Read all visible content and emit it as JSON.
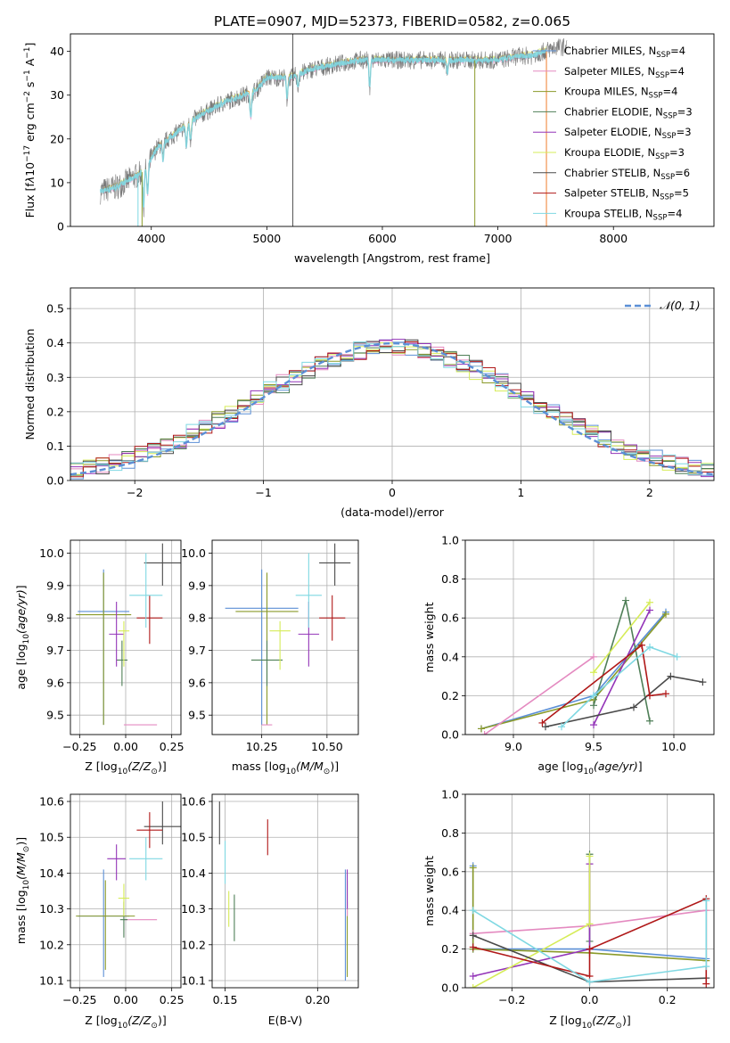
{
  "figure": {
    "title": "PLATE=0907, MJD=52373, FIBERID=0582, z=0.065"
  },
  "colors": {
    "Chabrier MILES": "#5b8fd6",
    "Salpeter MILES": "#e48ac0",
    "Kroupa MILES": "#8a9a2a",
    "Chabrier ELODIE": "#4f7f57",
    "Salpeter ELODIE": "#9334b8",
    "Kroupa ELODIE": "#d6ec58",
    "Chabrier STELIB": "#4a4a4a",
    "Salpeter STELIB": "#b01818",
    "Kroupa STELIB": "#7fd8e2",
    "orange": "#f07f2e",
    "gaussian": "#5b8fd6",
    "grid": "#b0b0b0"
  },
  "chart_data": [
    {
      "id": "spectrum",
      "type": "line",
      "title": "PLATE=0907, MJD=52373, FIBERID=0582, z=0.065",
      "xlabel": "wavelength [Angstrom, rest frame]",
      "ylabel_parts": [
        "Flux [f",
        "λ",
        "10",
        "−17",
        " erg cm",
        "−2",
        " s",
        "−1",
        " A",
        "−1",
        "]"
      ],
      "xlim": [
        3300,
        8870
      ],
      "ylim": [
        0,
        44
      ],
      "xticks": [
        4000,
        5000,
        6000,
        7000,
        8000
      ],
      "yticks": [
        0,
        10,
        20,
        30,
        40
      ],
      "grid": false,
      "legend_position": "top-right",
      "legend": [
        {
          "name": "Chabrier MILES",
          "n": "4"
        },
        {
          "name": "Salpeter MILES",
          "n": "4"
        },
        {
          "name": "Kroupa MILES",
          "n": "4"
        },
        {
          "name": "Chabrier ELODIE",
          "n": "3"
        },
        {
          "name": "Salpeter ELODIE",
          "n": "3"
        },
        {
          "name": "Kroupa ELODIE",
          "n": "3"
        },
        {
          "name": "Chabrier STELIB",
          "n": "6"
        },
        {
          "name": "Salpeter STELIB",
          "n": "5"
        },
        {
          "name": "Kroupa STELIB",
          "n": "4"
        }
      ],
      "continuum_x": [
        3560,
        3700,
        3900,
        3950,
        4050,
        4200,
        4400,
        4600,
        4800,
        4900,
        5000,
        5200,
        5400,
        5600,
        5800,
        6000,
        6200,
        6400,
        6600,
        6800,
        7000,
        7200,
        7300,
        7400,
        7500
      ],
      "continuum_y": [
        8,
        9,
        12,
        13,
        18,
        21,
        25,
        28,
        30,
        31,
        34,
        34,
        36,
        37,
        38,
        38,
        38,
        38,
        38,
        38,
        38,
        39,
        39,
        40,
        41
      ],
      "model_end_wavelength": 7420,
      "data_end_wavelength": 7600
    },
    {
      "id": "residuals",
      "type": "histogram",
      "xlabel": "(data-model)/error",
      "ylabel": "Normed distribution",
      "xlim": [
        -2.5,
        2.5
      ],
      "ylim": [
        0,
        0.56
      ],
      "xticks": [
        -2,
        -1,
        0,
        1,
        2
      ],
      "xtick_labels": [
        "−2",
        "−1",
        "0",
        "1",
        "2"
      ],
      "yticks": [
        0.0,
        0.1,
        0.2,
        0.3,
        0.4,
        0.5
      ],
      "grid": true,
      "legend_position": "top-right",
      "gaussian_label": "𝒩(0, 1)"
    },
    {
      "id": "age-vs-Z",
      "type": "scatter",
      "xlabel": "Z [log10(Z/Z☉)]",
      "ylabel": "age [log10(age/yr)]",
      "xlim": [
        -0.3,
        0.3
      ],
      "ylim": [
        9.44,
        10.04
      ],
      "xticks": [
        -0.25,
        0.0,
        0.25
      ],
      "xtick_labels": [
        "−0.25",
        "0.00",
        "0.25"
      ],
      "yticks": [
        9.5,
        9.6,
        9.7,
        9.8,
        9.9,
        10.0
      ],
      "grid": true,
      "points": [
        {
          "model": "Chabrier MILES",
          "x": -0.12,
          "xerr": 0.14,
          "y": 9.82,
          "yerr": [
            0.35,
            0.13
          ]
        },
        {
          "model": "Kroupa MILES",
          "x": -0.12,
          "xerr": 0.15,
          "y": 9.81,
          "yerr": [
            0.34,
            0.13
          ]
        },
        {
          "model": "Salpeter MILES",
          "x": 0.08,
          "xerr": 0.09,
          "y": 9.47,
          "yerr": [
            0.0,
            0.0
          ]
        },
        {
          "model": "Chabrier ELODIE",
          "x": -0.02,
          "xerr": 0.03,
          "y": 9.67,
          "yerr": [
            0.08,
            0.06
          ]
        },
        {
          "model": "Salpeter ELODIE",
          "x": -0.05,
          "xerr": 0.04,
          "y": 9.75,
          "yerr": [
            0.1,
            0.1
          ]
        },
        {
          "model": "Kroupa ELODIE",
          "x": -0.01,
          "xerr": 0.03,
          "y": 9.76,
          "yerr": [
            0.11,
            0.03
          ]
        },
        {
          "model": "Chabrier STELIB",
          "x": 0.2,
          "xerr": 0.1,
          "y": 9.97,
          "yerr": [
            0.07,
            0.06
          ]
        },
        {
          "model": "Salpeter STELIB",
          "x": 0.13,
          "xerr": 0.07,
          "y": 9.8,
          "yerr": [
            0.08,
            0.07
          ]
        },
        {
          "model": "Kroupa STELIB",
          "x": 0.11,
          "xerr": 0.09,
          "y": 9.87,
          "yerr": [
            0.1,
            0.13
          ]
        }
      ]
    },
    {
      "id": "age-vs-mass",
      "type": "scatter",
      "xlabel": "mass [log10(M/M☉)]",
      "xlim": [
        10.06,
        10.62
      ],
      "ylim": [
        9.44,
        10.04
      ],
      "xticks": [
        10.25,
        10.5
      ],
      "xtick_labels": [
        "10.25",
        "10.50"
      ],
      "yticks": [
        9.5,
        9.6,
        9.7,
        9.8,
        9.9,
        10.0
      ],
      "grid": true,
      "points": [
        {
          "model": "Chabrier MILES",
          "x": 10.25,
          "xerr": 0.14,
          "y": 9.83,
          "yerr": [
            0.36,
            0.12
          ]
        },
        {
          "model": "Kroupa MILES",
          "x": 10.27,
          "xerr": 0.12,
          "y": 9.82,
          "yerr": [
            0.35,
            0.12
          ]
        },
        {
          "model": "Salpeter MILES",
          "x": 10.27,
          "xerr": 0.02,
          "y": 9.47,
          "yerr": [
            0.0,
            0.0
          ]
        },
        {
          "model": "Chabrier ELODIE",
          "x": 10.27,
          "xerr": 0.06,
          "y": 9.67,
          "yerr": [
            0.08,
            0.06
          ]
        },
        {
          "model": "Salpeter ELODIE",
          "x": 10.43,
          "xerr": 0.04,
          "y": 9.75,
          "yerr": [
            0.1,
            0.1
          ]
        },
        {
          "model": "Kroupa ELODIE",
          "x": 10.32,
          "xerr": 0.04,
          "y": 9.76,
          "yerr": [
            0.12,
            0.03
          ]
        },
        {
          "model": "Chabrier STELIB",
          "x": 10.53,
          "xerr": 0.06,
          "y": 9.97,
          "yerr": [
            0.07,
            0.06
          ]
        },
        {
          "model": "Salpeter STELIB",
          "x": 10.52,
          "xerr": 0.05,
          "y": 9.8,
          "yerr": [
            0.07,
            0.07
          ]
        },
        {
          "model": "Kroupa STELIB",
          "x": 10.43,
          "xerr": 0.05,
          "y": 9.87,
          "yerr": [
            0.1,
            0.13
          ]
        }
      ]
    },
    {
      "id": "weight-vs-age",
      "type": "line",
      "xlabel": "age [log10(age/yr)]",
      "ylabel": "mass weight",
      "xlim": [
        8.7,
        10.25
      ],
      "ylim": [
        0,
        1.0
      ],
      "xticks": [
        9.0,
        9.5,
        10.0
      ],
      "xtick_labels": [
        "9.0",
        "9.5",
        "10.0"
      ],
      "yticks": [
        0.0,
        0.2,
        0.4,
        0.6,
        0.8,
        1.0
      ],
      "grid": true,
      "series": [
        {
          "model": "Chabrier MILES",
          "x": [
            8.8,
            9.5,
            9.95
          ],
          "y": [
            0.03,
            0.2,
            0.63
          ]
        },
        {
          "model": "Kroupa MILES",
          "x": [
            8.8,
            9.5,
            9.95
          ],
          "y": [
            0.03,
            0.18,
            0.62
          ]
        },
        {
          "model": "Salpeter MILES",
          "x": [
            8.82,
            9.5
          ],
          "y": [
            0.0,
            0.4
          ]
        },
        {
          "model": "Chabrier ELODIE",
          "x": [
            9.5,
            9.7,
            9.85
          ],
          "y": [
            0.15,
            0.69,
            0.07
          ]
        },
        {
          "model": "Salpeter ELODIE",
          "x": [
            9.5,
            9.85
          ],
          "y": [
            0.05,
            0.64
          ]
        },
        {
          "model": "Kroupa ELODIE",
          "x": [
            9.5,
            9.85
          ],
          "y": [
            0.32,
            0.68
          ]
        },
        {
          "model": "Chabrier STELIB",
          "x": [
            9.2,
            9.75,
            9.98,
            10.18
          ],
          "y": [
            0.04,
            0.14,
            0.3,
            0.27
          ]
        },
        {
          "model": "Salpeter STELIB",
          "x": [
            9.18,
            9.8,
            9.85,
            9.95
          ],
          "y": [
            0.06,
            0.46,
            0.2,
            0.21
          ]
        },
        {
          "model": "Kroupa STELIB",
          "x": [
            9.3,
            9.5,
            9.85,
            10.02
          ],
          "y": [
            0.04,
            0.2,
            0.45,
            0.4
          ]
        }
      ]
    },
    {
      "id": "mass-vs-Z",
      "type": "scatter",
      "xlabel": "Z [log10(Z/Z☉)]",
      "ylabel": "mass [log10(M/M☉)]",
      "xlim": [
        -0.3,
        0.3
      ],
      "ylim": [
        10.08,
        10.62
      ],
      "xticks": [
        -0.25,
        0.0,
        0.25
      ],
      "xtick_labels": [
        "−0.25",
        "0.00",
        "0.25"
      ],
      "yticks": [
        10.1,
        10.2,
        10.3,
        10.4,
        10.5,
        10.6
      ],
      "grid": true,
      "points": [
        {
          "model": "Chabrier MILES",
          "x": -0.12,
          "xerr": 0.14,
          "y": 10.28,
          "yerr": [
            0.17,
            0.13
          ]
        },
        {
          "model": "Kroupa MILES",
          "x": -0.11,
          "xerr": 0.16,
          "y": 10.28,
          "yerr": [
            0.15,
            0.1
          ]
        },
        {
          "model": "Salpeter MILES",
          "x": 0.08,
          "xerr": 0.09,
          "y": 10.27,
          "yerr": [
            0.0,
            0.0
          ]
        },
        {
          "model": "Chabrier ELODIE",
          "x": -0.01,
          "xerr": 0.02,
          "y": 10.27,
          "yerr": [
            0.05,
            0.05
          ]
        },
        {
          "model": "Salpeter ELODIE",
          "x": -0.05,
          "xerr": 0.05,
          "y": 10.44,
          "yerr": [
            0.06,
            0.04
          ]
        },
        {
          "model": "Kroupa ELODIE",
          "x": -0.01,
          "xerr": 0.03,
          "y": 10.33,
          "yerr": [
            0.05,
            0.04
          ]
        },
        {
          "model": "Chabrier STELIB",
          "x": 0.2,
          "xerr": 0.1,
          "y": 10.53,
          "yerr": [
            0.05,
            0.07
          ]
        },
        {
          "model": "Salpeter STELIB",
          "x": 0.13,
          "xerr": 0.07,
          "y": 10.52,
          "yerr": [
            0.05,
            0.05
          ]
        },
        {
          "model": "Kroupa STELIB",
          "x": 0.11,
          "xerr": 0.09,
          "y": 10.44,
          "yerr": [
            0.06,
            0.06
          ]
        }
      ]
    },
    {
      "id": "mass-vs-ebv",
      "type": "scatter",
      "xlabel": "E(B-V)",
      "xlim": [
        0.143,
        0.222
      ],
      "ylim": [
        10.08,
        10.62
      ],
      "xticks": [
        0.15,
        0.2
      ],
      "xtick_labels": [
        "0.15",
        "0.20"
      ],
      "yticks": [
        10.1,
        10.2,
        10.3,
        10.4,
        10.5,
        10.6
      ],
      "grid": true,
      "points": [
        {
          "model": "Chabrier MILES",
          "x": 0.215,
          "xerr": 0,
          "y": 10.27,
          "yerr": [
            0.17,
            0.14
          ]
        },
        {
          "model": "Kroupa MILES",
          "x": 0.216,
          "xerr": 0,
          "y": 10.26,
          "yerr": [
            0.15,
            0.12
          ]
        },
        {
          "model": "Salpeter MILES",
          "x": 0.216,
          "xerr": 0,
          "y": 10.3,
          "yerr": [
            0.02,
            0.02
          ]
        },
        {
          "model": "Chabrier ELODIE",
          "x": 0.155,
          "xerr": 0,
          "y": 10.28,
          "yerr": [
            0.07,
            0.06
          ]
        },
        {
          "model": "Salpeter ELODIE",
          "x": 0.216,
          "xerr": 0,
          "y": 10.35,
          "yerr": [
            0.05,
            0.06
          ]
        },
        {
          "model": "Kroupa ELODIE",
          "x": 0.152,
          "xerr": 0,
          "y": 10.3,
          "yerr": [
            0.05,
            0.05
          ]
        },
        {
          "model": "Chabrier STELIB",
          "x": 0.147,
          "xerr": 0,
          "y": 10.53,
          "yerr": [
            0.05,
            0.07
          ]
        },
        {
          "model": "Salpeter STELIB",
          "x": 0.173,
          "xerr": 0,
          "y": 10.5,
          "yerr": [
            0.05,
            0.05
          ]
        },
        {
          "model": "Kroupa STELIB",
          "x": 0.15,
          "xerr": 0,
          "y": 10.43,
          "yerr": [
            0.06,
            0.06
          ]
        }
      ]
    },
    {
      "id": "weight-vs-Z",
      "type": "line",
      "xlabel": "Z [log10(Z/Z☉)]",
      "ylabel": "mass weight",
      "xlim": [
        -0.32,
        0.32
      ],
      "ylim": [
        0,
        1.0
      ],
      "xticks": [
        -0.2,
        0.0,
        0.2
      ],
      "xtick_labels": [
        "−0.2",
        "0.0",
        "0.2"
      ],
      "yticks": [
        0.0,
        0.2,
        0.4,
        0.6,
        0.8,
        1.0
      ],
      "grid": true,
      "series": [
        {
          "model": "Chabrier MILES",
          "x": [
            -0.3,
            -0.3,
            0.0,
            0.3
          ],
          "y": [
            0.63,
            0.2,
            0.2,
            0.15
          ]
        },
        {
          "model": "Kroupa MILES",
          "x": [
            -0.3,
            -0.3,
            0.0,
            0.3
          ],
          "y": [
            0.62,
            0.2,
            0.18,
            0.14
          ]
        },
        {
          "model": "Salpeter MILES",
          "x": [
            -0.3,
            0.0,
            0.3
          ],
          "y": [
            0.28,
            0.32,
            0.4
          ]
        },
        {
          "model": "Chabrier ELODIE",
          "x": [
            0.0,
            0.0
          ],
          "y": [
            0.69,
            0.24
          ]
        },
        {
          "model": "Salpeter ELODIE",
          "x": [
            -0.3,
            0.0,
            0.0
          ],
          "y": [
            0.06,
            0.2,
            0.64
          ]
        },
        {
          "model": "Kroupa ELODIE",
          "x": [
            -0.3,
            0.0,
            0.0
          ],
          "y": [
            0.0,
            0.33,
            0.68
          ]
        },
        {
          "model": "Chabrier STELIB",
          "x": [
            -0.3,
            0.0,
            0.3
          ],
          "y": [
            0.27,
            0.03,
            0.05
          ]
        },
        {
          "model": "Salpeter STELIB",
          "x": [
            -0.3,
            0.0,
            0.0,
            0.3,
            0.3
          ],
          "y": [
            0.21,
            0.06,
            0.2,
            0.46,
            0.02
          ]
        },
        {
          "model": "Kroupa STELIB",
          "x": [
            -0.3,
            0.0,
            0.3,
            0.3
          ],
          "y": [
            0.4,
            0.03,
            0.11,
            0.45
          ]
        }
      ]
    }
  ]
}
